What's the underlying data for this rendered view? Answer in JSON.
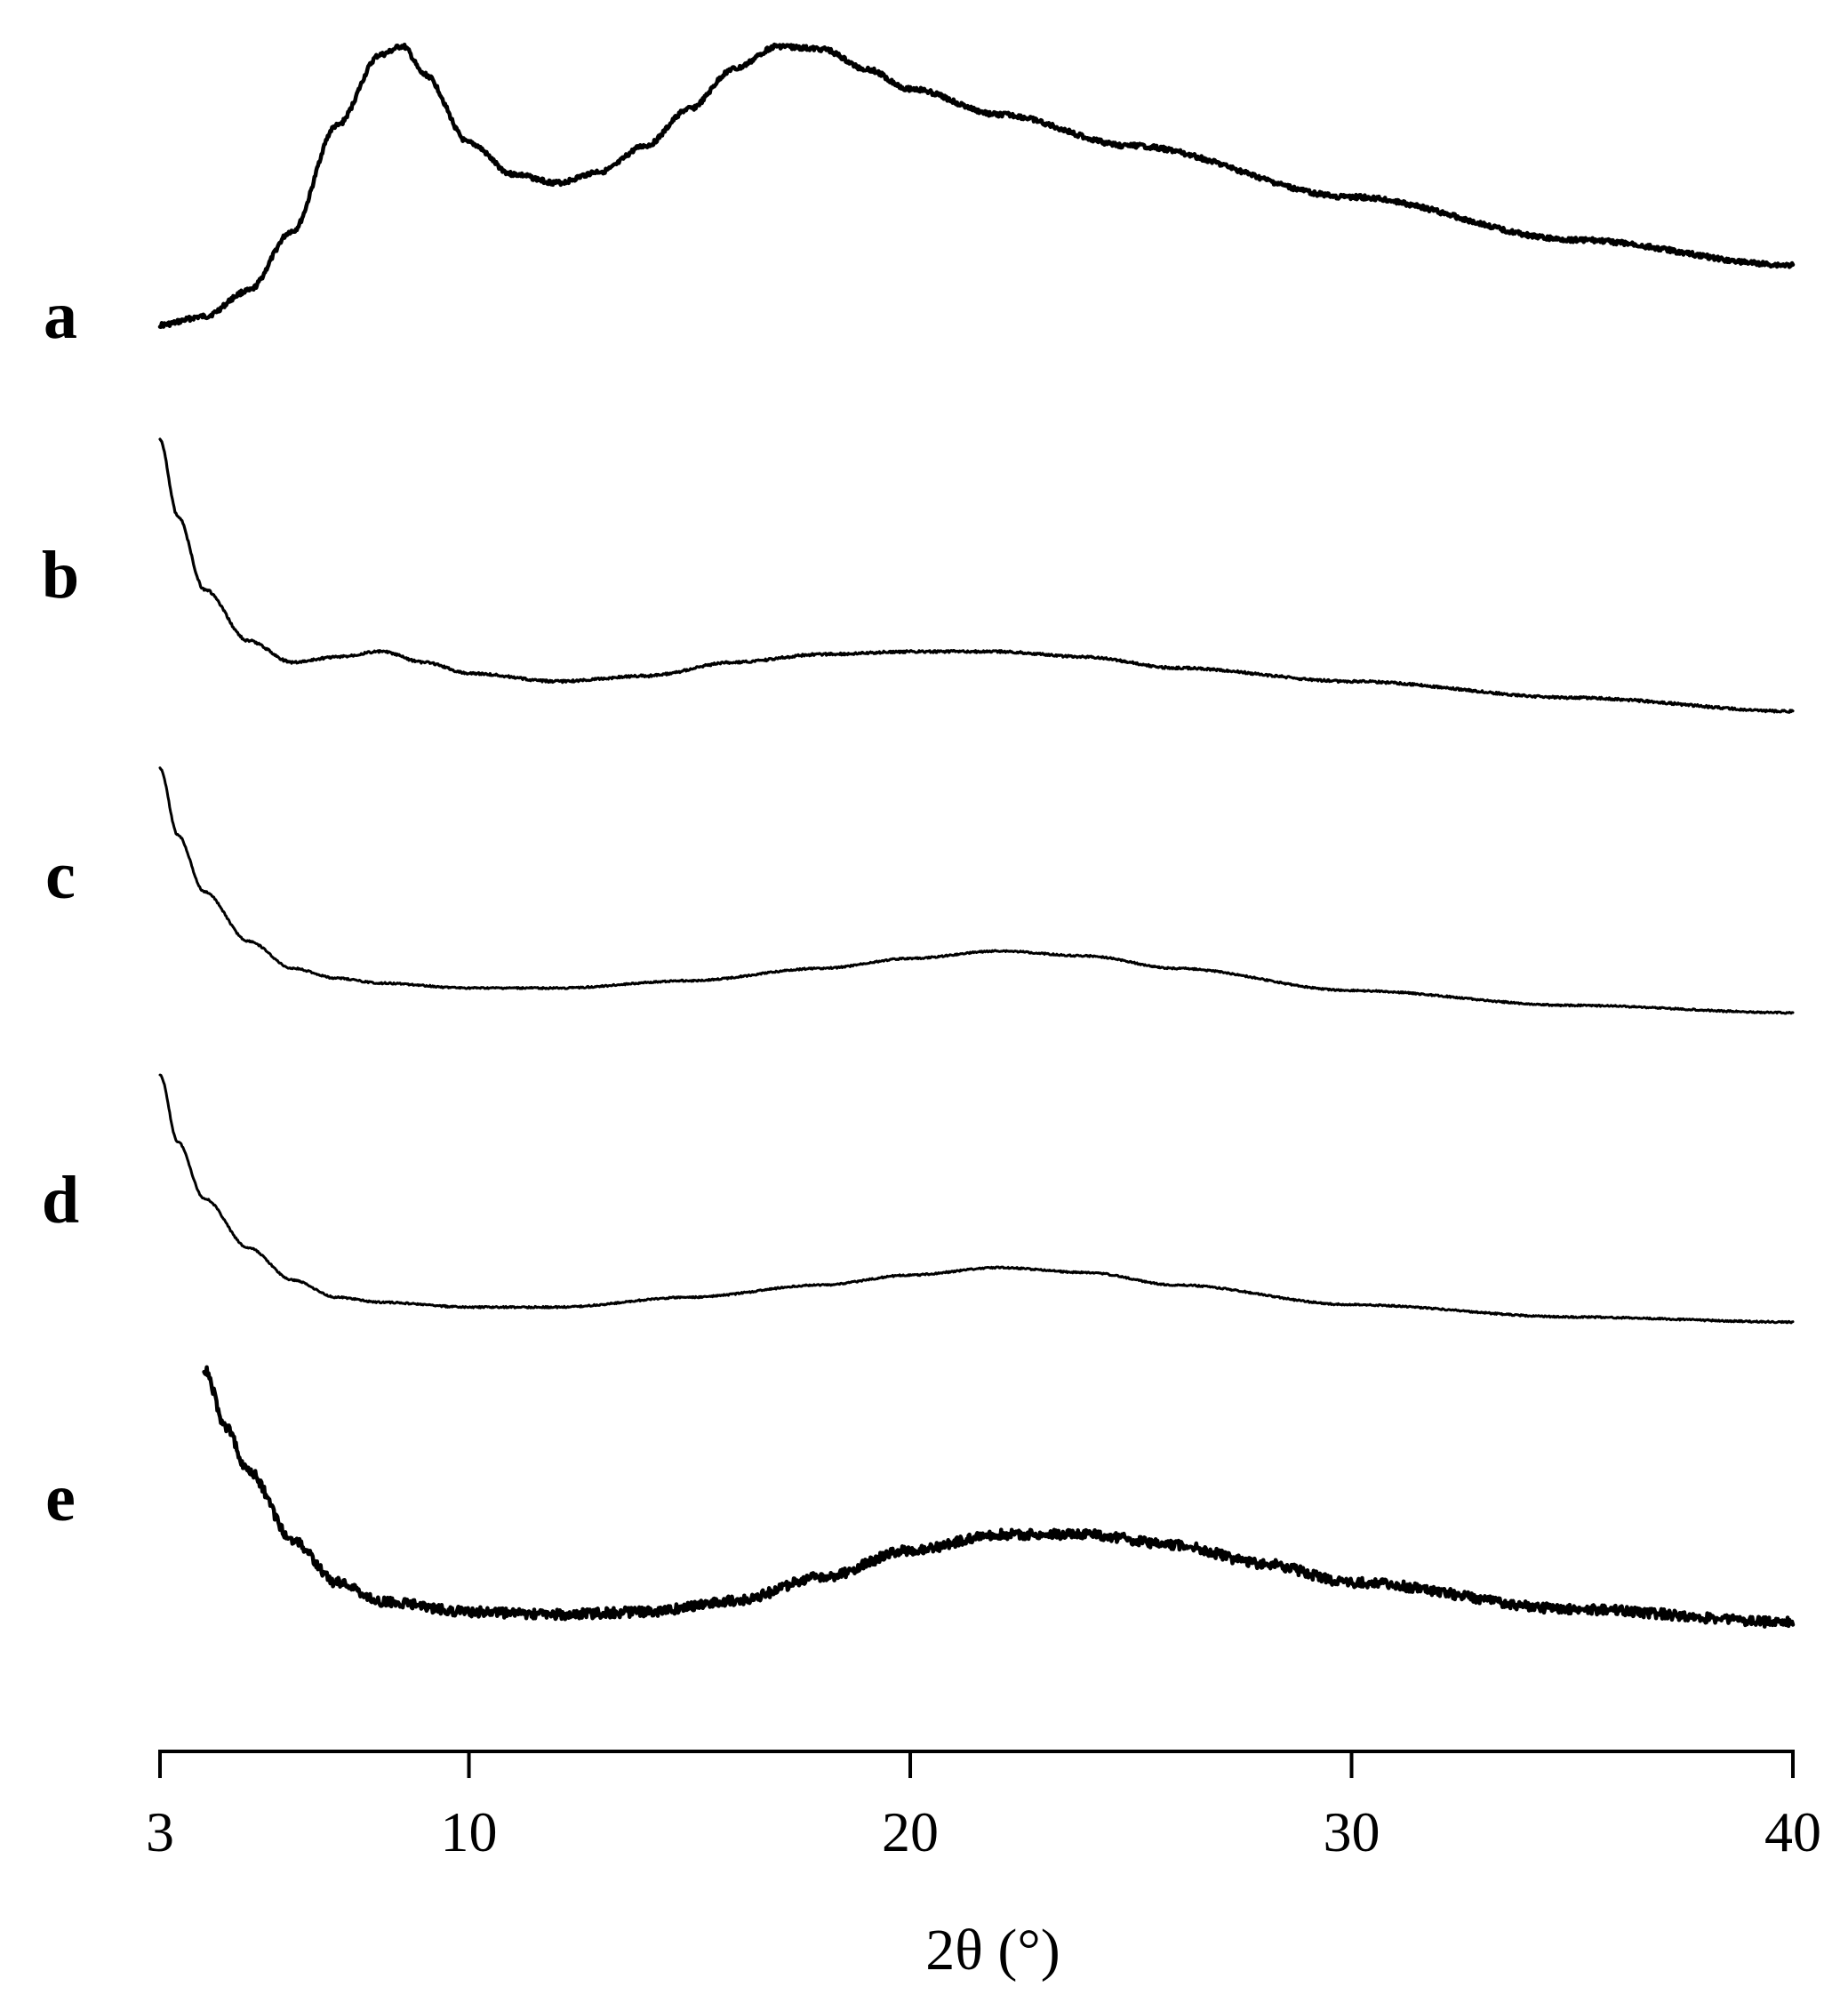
{
  "chart_data": {
    "type": "line",
    "title": "",
    "xlabel": "2θ (°)",
    "ylabel": "",
    "xlim": [
      3,
      40
    ],
    "x_ticks": [
      3,
      10,
      20,
      30,
      40
    ],
    "x_tick_labels": [
      "3",
      "10",
      "20",
      "30",
      "40"
    ],
    "grid": false,
    "y_axis_shown": false,
    "layout": "vertically-offset stacked traces",
    "series": [
      {
        "name": "a",
        "stroke": 4.5,
        "noise": 2.6,
        "points": [
          [
            3,
            0.02
          ],
          [
            4,
            0.05
          ],
          [
            5,
            0.14
          ],
          [
            6,
            0.35
          ],
          [
            7,
            0.72
          ],
          [
            8,
            0.97
          ],
          [
            8.5,
            1.0
          ],
          [
            9,
            0.9
          ],
          [
            10,
            0.66
          ],
          [
            11,
            0.55
          ],
          [
            12,
            0.52
          ],
          [
            13,
            0.56
          ],
          [
            14,
            0.65
          ],
          [
            15,
            0.78
          ],
          [
            16,
            0.92
          ],
          [
            17,
            1.0
          ],
          [
            18,
            0.99
          ],
          [
            19,
            0.92
          ],
          [
            20,
            0.85
          ],
          [
            22,
            0.76
          ],
          [
            25,
            0.65
          ],
          [
            30,
            0.47
          ],
          [
            35,
            0.32
          ],
          [
            40,
            0.23
          ]
        ]
      },
      {
        "name": "b",
        "stroke": 3.2,
        "noise": 1.3,
        "points": [
          [
            3,
            1.0
          ],
          [
            3.4,
            0.72
          ],
          [
            4,
            0.45
          ],
          [
            5,
            0.26
          ],
          [
            6,
            0.18
          ],
          [
            7,
            0.2
          ],
          [
            8,
            0.22
          ],
          [
            9,
            0.18
          ],
          [
            10,
            0.14
          ],
          [
            12,
            0.11
          ],
          [
            14,
            0.13
          ],
          [
            16,
            0.18
          ],
          [
            18,
            0.21
          ],
          [
            20,
            0.22
          ],
          [
            22,
            0.22
          ],
          [
            24,
            0.2
          ],
          [
            26,
            0.16
          ],
          [
            30,
            0.11
          ],
          [
            35,
            0.05
          ],
          [
            40,
            0.0
          ]
        ]
      },
      {
        "name": "c",
        "stroke": 3.0,
        "noise": 0.9,
        "points": [
          [
            3,
            1.0
          ],
          [
            3.4,
            0.73
          ],
          [
            4,
            0.5
          ],
          [
            5,
            0.3
          ],
          [
            6,
            0.19
          ],
          [
            7,
            0.15
          ],
          [
            8,
            0.13
          ],
          [
            10,
            0.11
          ],
          [
            12,
            0.11
          ],
          [
            15,
            0.14
          ],
          [
            18,
            0.19
          ],
          [
            20,
            0.23
          ],
          [
            22,
            0.26
          ],
          [
            24,
            0.24
          ],
          [
            26,
            0.19
          ],
          [
            30,
            0.1
          ],
          [
            35,
            0.04
          ],
          [
            40,
            0.01
          ]
        ]
      },
      {
        "name": "d",
        "stroke": 3.0,
        "noise": 0.9,
        "points": [
          [
            3,
            1.0
          ],
          [
            3.4,
            0.73
          ],
          [
            4,
            0.5
          ],
          [
            5,
            0.3
          ],
          [
            6,
            0.17
          ],
          [
            7,
            0.1
          ],
          [
            8,
            0.08
          ],
          [
            10,
            0.06
          ],
          [
            12,
            0.06
          ],
          [
            15,
            0.1
          ],
          [
            18,
            0.15
          ],
          [
            20,
            0.19
          ],
          [
            22,
            0.22
          ],
          [
            24,
            0.2
          ],
          [
            26,
            0.15
          ],
          [
            30,
            0.07
          ],
          [
            35,
            0.02
          ],
          [
            40,
            0.0
          ]
        ]
      },
      {
        "name": "e",
        "stroke": 4.5,
        "noise": 5.5,
        "points": [
          [
            4,
            1.0
          ],
          [
            4.5,
            0.78
          ],
          [
            5,
            0.62
          ],
          [
            6,
            0.36
          ],
          [
            7,
            0.2
          ],
          [
            8,
            0.13
          ],
          [
            10,
            0.09
          ],
          [
            12,
            0.08
          ],
          [
            14,
            0.09
          ],
          [
            16,
            0.13
          ],
          [
            18,
            0.22
          ],
          [
            20,
            0.32
          ],
          [
            22,
            0.38
          ],
          [
            24,
            0.38
          ],
          [
            26,
            0.34
          ],
          [
            28,
            0.27
          ],
          [
            30,
            0.2
          ],
          [
            35,
            0.1
          ],
          [
            40,
            0.05
          ]
        ]
      }
    ]
  }
}
